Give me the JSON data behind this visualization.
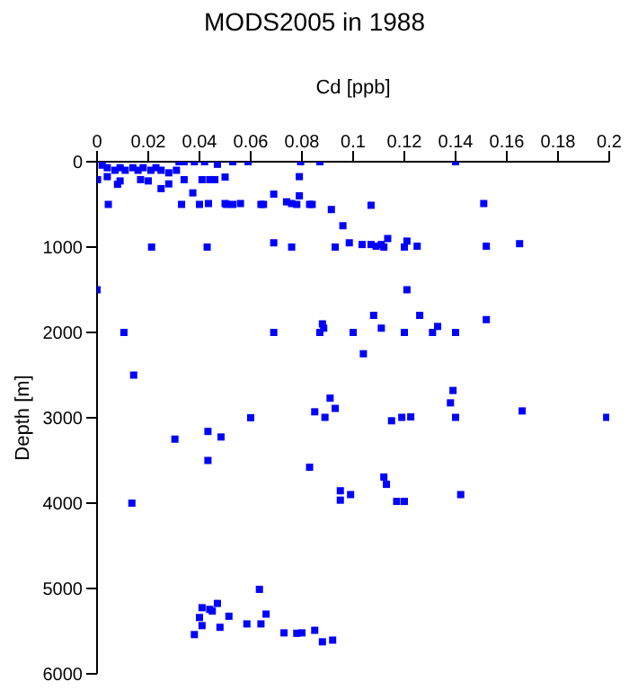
{
  "chart_data": {
    "type": "scatter",
    "title": "MODS2005 in 1988",
    "xlabel": "Cd [ppb]",
    "ylabel": "Depth [m]",
    "xlim": [
      0,
      0.2
    ],
    "xticks": [
      0,
      0.02,
      0.04,
      0.06,
      0.08,
      0.1,
      0.12,
      0.14,
      0.16,
      0.18,
      0.2
    ],
    "ylim": [
      6000,
      0
    ],
    "yticks": [
      0,
      1000,
      2000,
      3000,
      4000,
      5000,
      6000
    ],
    "grid": false,
    "marker": "square",
    "legend": false,
    "series": [
      {
        "color": "#0000ff",
        "x": [
          0,
          0.0044,
          0.033,
          0.04,
          0.0435,
          0.05,
          0.0505,
          0.053,
          0.056,
          0.064,
          0.065,
          0.069,
          0.074,
          0.076,
          0.078,
          0.079,
          0.083,
          0.084,
          0.0915,
          0.107,
          0.151,
          0.079,
          0.096,
          0.0374,
          0.025,
          0.028,
          0.02,
          0.046,
          0.05,
          0.041,
          0.044,
          0.034,
          0.017,
          0.009,
          0.008,
          0.004,
          0.0002,
          0.0795,
          0.087,
          0.14,
          0.053,
          0.059,
          0.042,
          0.038,
          0.047,
          0.002,
          0.004,
          0.007,
          0.009,
          0.011,
          0.014,
          0.016,
          0.018,
          0.021,
          0.023,
          0.025,
          0.028,
          0.031,
          0.032,
          0.034,
          0.0213,
          0.043,
          0.069,
          0.076,
          0.093,
          0.0985,
          0.1035,
          0.107,
          0.109,
          0.111,
          0.112,
          0.1135,
          0.12,
          0.121,
          0.125,
          0.152,
          0.165,
          0.121,
          0.0105,
          0.069,
          0.087,
          0.088,
          0.0885,
          0.1,
          0.104,
          0.108,
          0.111,
          0.12,
          0.126,
          0.131,
          0.133,
          0.14,
          0.152,
          0.0143,
          0.0304,
          0.0433,
          0.0484,
          0.0433,
          0.06,
          0.085,
          0.089,
          0.091,
          0.093,
          0.115,
          0.119,
          0.1225,
          0.139,
          0.138,
          0.14,
          0.166,
          0.199,
          0.083,
          0.112,
          0.113,
          0.095,
          0.099,
          0.095,
          0.117,
          0.12,
          0.142,
          0.0136,
          0.038,
          0.04,
          0.041,
          0.041,
          0.044,
          0.045,
          0.047,
          0.048,
          0.0515,
          0.0585,
          0.0634,
          0.064,
          0.066,
          0.073,
          0.078,
          0.08,
          0.085,
          0.088,
          0.092
        ],
        "values": [
          1500,
          500,
          500,
          500,
          490,
          490,
          500,
          500,
          490,
          500,
          500,
          380,
          470,
          490,
          500,
          400,
          500,
          500,
          560,
          510,
          490,
          175,
          750,
          365,
          315,
          260,
          225,
          210,
          180,
          210,
          210,
          210,
          210,
          225,
          265,
          175,
          210,
          0,
          0,
          0,
          0,
          0,
          0,
          0,
          30,
          40,
          70,
          100,
          70,
          100,
          70,
          100,
          70,
          100,
          70,
          100,
          130,
          100,
          0,
          0,
          1000,
          1000,
          950,
          1000,
          1000,
          950,
          970,
          970,
          990,
          970,
          1000,
          900,
          1000,
          930,
          990,
          990,
          960,
          1500,
          2000,
          2000,
          2000,
          1900,
          1950,
          2000,
          2250,
          1800,
          1950,
          2000,
          1800,
          2000,
          1930,
          2000,
          1850,
          2500,
          3250,
          3160,
          3225,
          3500,
          3000,
          2930,
          2995,
          2770,
          2890,
          3035,
          2995,
          2990,
          2680,
          2825,
          2995,
          2920,
          2995,
          3580,
          3695,
          3780,
          3855,
          3900,
          3965,
          3980,
          3980,
          3900,
          4000,
          5540,
          5340,
          5225,
          5435,
          5245,
          5265,
          5175,
          5455,
          5325,
          5415,
          5010,
          5415,
          5300,
          5520,
          5525,
          5520,
          5490,
          5625,
          5605
        ]
      }
    ]
  }
}
